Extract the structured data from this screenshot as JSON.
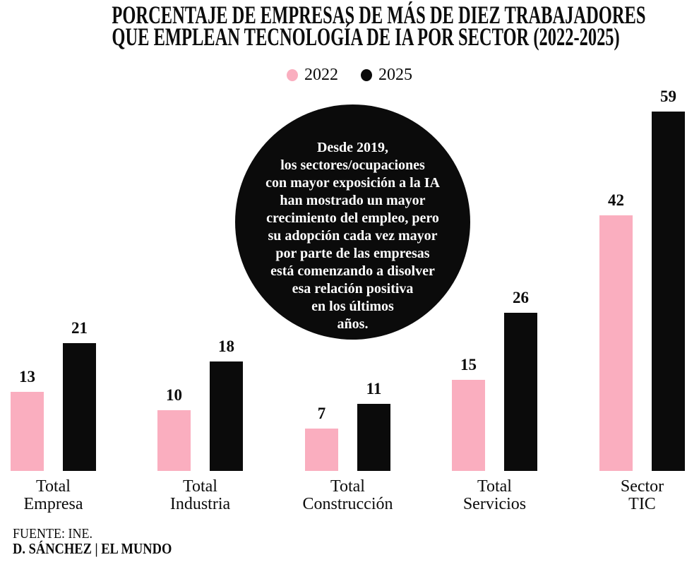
{
  "title": {
    "line1": "PORCENTAJE DE EMPRESAS DE MÁS DE DIEZ TRABAJADORES",
    "line2": "QUE EMPLEAN TECNOLOGÍA DE IA POR SECTOR (2022-2025)"
  },
  "annotation": {
    "text": "Desde 2019,\nlos sectores/ocupaciones\ncon mayor exposición a la IA\nhan mostrado un mayor\ncrecimiento del empleo, pero\nsu adopción cada vez mayor\npor parte de las empresas\nestá comenzando a disolver\nesa relación positiva\nen los últimos\naños.",
    "bg_color": "#0b0b0b",
    "text_color": "#ffffff"
  },
  "chart_data": {
    "type": "bar",
    "title": "PORCENTAJE DE EMPRESAS DE MÁS DE DIEZ TRABAJADORES QUE EMPLEAN TECNOLOGÍA DE IA POR SECTOR (2022-2025)",
    "categories": [
      "Total\nEmpresa",
      "Total\nIndustria",
      "Total\nConstrucción",
      "Total\nServicios",
      "Sector\nTIC"
    ],
    "series": [
      {
        "name": "2022",
        "color": "#FAAEBF",
        "values": [
          13,
          10,
          7,
          15,
          42
        ]
      },
      {
        "name": "2025",
        "color": "#0b0b0b",
        "values": [
          21,
          18,
          11,
          26,
          59
        ]
      }
    ],
    "value_labels": true,
    "ylim": [
      0,
      62
    ],
    "grid": false,
    "axis_lines": false,
    "legend_position": "top-center"
  },
  "footer": {
    "source": "FUENTE: INE.",
    "credit": "D. SÁNCHEZ | EL MUNDO"
  }
}
